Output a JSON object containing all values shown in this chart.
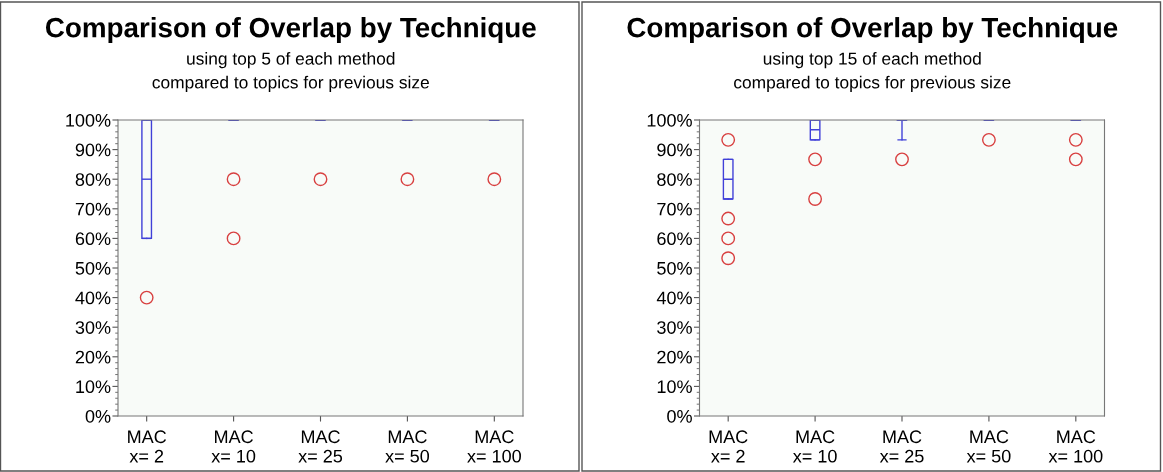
{
  "chart_data": [
    {
      "type": "box",
      "title": "Comparison of Overlap by Technique",
      "subtitle": "using top 5 of each method\ncompared to topics for previous size",
      "categories": [
        "MAC\nx= 2",
        "MAC\nx= 10",
        "MAC\nx= 25",
        "MAC\nx= 50",
        "MAC\nx= 100"
      ],
      "ylim": [
        0,
        100
      ],
      "yticks": [
        {
          "value": 0,
          "label": "0%"
        },
        {
          "value": 10,
          "label": "10%"
        },
        {
          "value": 20,
          "label": "20%"
        },
        {
          "value": 30,
          "label": "30%"
        },
        {
          "value": 40,
          "label": "40%"
        },
        {
          "value": 50,
          "label": "50%"
        },
        {
          "value": 60,
          "label": "60%"
        },
        {
          "value": 70,
          "label": "70%"
        },
        {
          "value": 80,
          "label": "80%"
        },
        {
          "value": 90,
          "label": "90%"
        },
        {
          "value": 100,
          "label": "100%"
        }
      ],
      "series": [
        {
          "color": "#4040d8",
          "boxes": [
            {
              "low": 60,
              "q1": 60,
              "median": 80,
              "q3": 100,
              "high": 100,
              "outliers": [
                40
              ]
            },
            {
              "low": 100,
              "q1": 100,
              "median": 100,
              "q3": 100,
              "high": 100,
              "outliers": [
                80,
                60
              ]
            },
            {
              "low": 100,
              "q1": 100,
              "median": 100,
              "q3": 100,
              "high": 100,
              "outliers": [
                80
              ]
            },
            {
              "low": 100,
              "q1": 100,
              "median": 100,
              "q3": 100,
              "high": 100,
              "outliers": [
                80
              ]
            },
            {
              "low": 100,
              "q1": 100,
              "median": 100,
              "q3": 100,
              "high": 100,
              "outliers": [
                80
              ]
            }
          ]
        }
      ]
    },
    {
      "type": "box",
      "title": "Comparison of Overlap by Technique",
      "subtitle": "using top 15 of each method\ncompared to topics for previous size",
      "categories": [
        "MAC\nx= 2",
        "MAC\nx= 10",
        "MAC\nx= 25",
        "MAC\nx= 50",
        "MAC\nx= 100"
      ],
      "ylim": [
        0,
        100
      ],
      "yticks": [
        {
          "value": 0,
          "label": "0%"
        },
        {
          "value": 10,
          "label": "10%"
        },
        {
          "value": 20,
          "label": "20%"
        },
        {
          "value": 30,
          "label": "30%"
        },
        {
          "value": 40,
          "label": "40%"
        },
        {
          "value": 50,
          "label": "50%"
        },
        {
          "value": 60,
          "label": "60%"
        },
        {
          "value": 70,
          "label": "70%"
        },
        {
          "value": 80,
          "label": "80%"
        },
        {
          "value": 90,
          "label": "90%"
        },
        {
          "value": 100,
          "label": "100%"
        }
      ],
      "series": [
        {
          "color": "#4040d8",
          "boxes": [
            {
              "low": 73.3,
              "q1": 73.3,
              "median": 80,
              "q3": 86.7,
              "high": 86.7,
              "outliers": [
                93.3,
                66.7,
                60,
                53.3
              ]
            },
            {
              "low": 93.3,
              "q1": 93.3,
              "median": 96.7,
              "q3": 100,
              "high": 100,
              "outliers": [
                86.7,
                73.3
              ]
            },
            {
              "low": 93.3,
              "q1": 100,
              "median": 100,
              "q3": 100,
              "high": 100,
              "outliers": [
                86.7
              ]
            },
            {
              "low": 100,
              "q1": 100,
              "median": 100,
              "q3": 100,
              "high": 100,
              "outliers": [
                93.3
              ]
            },
            {
              "low": 100,
              "q1": 100,
              "median": 100,
              "q3": 100,
              "high": 100,
              "outliers": [
                93.3,
                86.7
              ]
            }
          ]
        }
      ]
    }
  ]
}
